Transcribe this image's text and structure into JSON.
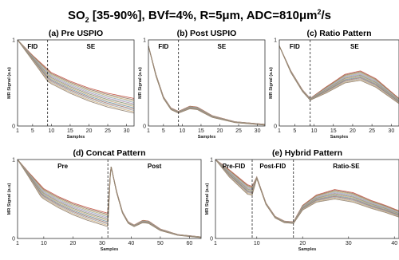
{
  "figure": {
    "title_main": "SO",
    "title_sub": "2",
    "title_rest": " [35-90%], BVf=4%, R=5μm, ADC=810μm",
    "title_sup": "2",
    "title_end": "/s"
  },
  "chart_data": [
    {
      "type": "line",
      "title": "(a) Pre USPIO",
      "xlabel": "Samples",
      "ylabel": "MR Signal (a.u)",
      "xlim": [
        1,
        32
      ],
      "ylim": [
        0,
        1
      ],
      "xticks": [
        1,
        5,
        10,
        15,
        20,
        25,
        30
      ],
      "yticks": [
        0,
        1
      ],
      "segments": [
        {
          "label": "FID",
          "x_from": 1,
          "x_to": 9
        },
        {
          "label": "SE",
          "x_from": 9,
          "x_to": 32
        }
      ],
      "dividers": [
        9
      ],
      "grid": false,
      "series_count": 12,
      "curves": {
        "top": [
          [
            1,
            1.0
          ],
          [
            5,
            0.82
          ],
          [
            9,
            0.66
          ],
          [
            10,
            0.62
          ],
          [
            15,
            0.52
          ],
          [
            20,
            0.44
          ],
          [
            25,
            0.38
          ],
          [
            32,
            0.32
          ]
        ],
        "bottom": [
          [
            1,
            1.0
          ],
          [
            5,
            0.76
          ],
          [
            9,
            0.52
          ],
          [
            10,
            0.49
          ],
          [
            15,
            0.38
          ],
          [
            20,
            0.29
          ],
          [
            25,
            0.22
          ],
          [
            32,
            0.15
          ]
        ]
      }
    },
    {
      "type": "line",
      "title": "(b) Post USPIO",
      "xlabel": "Samples",
      "ylabel": "MR Signal (a.u)",
      "xlim": [
        1,
        32
      ],
      "ylim": [
        0,
        1
      ],
      "xticks": [
        1,
        5,
        10,
        15,
        20,
        25,
        30
      ],
      "yticks": [
        0,
        1
      ],
      "segments": [
        {
          "label": "FID",
          "x_from": 1,
          "x_to": 9
        },
        {
          "label": "SE",
          "x_from": 9,
          "x_to": 32
        }
      ],
      "dividers": [
        9
      ],
      "grid": false,
      "series_count": 12,
      "curves": {
        "top": [
          [
            1,
            0.93
          ],
          [
            3,
            0.6
          ],
          [
            5,
            0.34
          ],
          [
            7,
            0.21
          ],
          [
            9,
            0.17
          ],
          [
            12,
            0.23
          ],
          [
            14,
            0.22
          ],
          [
            18,
            0.12
          ],
          [
            24,
            0.05
          ],
          [
            32,
            0.02
          ]
        ],
        "bottom": [
          [
            1,
            0.93
          ],
          [
            3,
            0.58
          ],
          [
            5,
            0.32
          ],
          [
            7,
            0.19
          ],
          [
            9,
            0.15
          ],
          [
            12,
            0.2
          ],
          [
            14,
            0.19
          ],
          [
            18,
            0.1
          ],
          [
            24,
            0.04
          ],
          [
            32,
            0.01
          ]
        ]
      }
    },
    {
      "type": "line",
      "title": "(c) Ratio Pattern",
      "xlabel": "Samples",
      "ylabel": "MR Signal (a.u)",
      "xlim": [
        1,
        32
      ],
      "ylim": [
        0,
        1
      ],
      "xticks": [
        1,
        5,
        10,
        15,
        20,
        25,
        30
      ],
      "yticks": [
        0,
        1
      ],
      "segments": [
        {
          "label": "FID",
          "x_from": 1,
          "x_to": 9
        },
        {
          "label": "SE",
          "x_from": 9,
          "x_to": 32
        }
      ],
      "dividers": [
        9
      ],
      "grid": false,
      "series_count": 12,
      "curves": {
        "top": [
          [
            1,
            0.93
          ],
          [
            4,
            0.64
          ],
          [
            7,
            0.42
          ],
          [
            9,
            0.32
          ],
          [
            13,
            0.45
          ],
          [
            18,
            0.6
          ],
          [
            22,
            0.64
          ],
          [
            26,
            0.55
          ],
          [
            32,
            0.32
          ]
        ],
        "bottom": [
          [
            1,
            0.93
          ],
          [
            4,
            0.62
          ],
          [
            7,
            0.4
          ],
          [
            9,
            0.3
          ],
          [
            13,
            0.38
          ],
          [
            18,
            0.5
          ],
          [
            22,
            0.53
          ],
          [
            26,
            0.45
          ],
          [
            32,
            0.26
          ]
        ]
      }
    },
    {
      "type": "line",
      "title": "(d) Concat Pattern",
      "xlabel": "Samples",
      "ylabel": "MR Signal (a.u)",
      "xlim": [
        1,
        64
      ],
      "ylim": [
        0,
        1
      ],
      "xticks": [
        1,
        10,
        20,
        30,
        40,
        50,
        60
      ],
      "yticks": [
        0,
        1
      ],
      "segments": [
        {
          "label": "Pre",
          "x_from": 1,
          "x_to": 32
        },
        {
          "label": "Post",
          "x_from": 32,
          "x_to": 64
        }
      ],
      "dividers": [
        32
      ],
      "grid": false,
      "series_count": 12,
      "curves": {
        "top": [
          [
            1,
            1.0
          ],
          [
            5,
            0.83
          ],
          [
            9,
            0.67
          ],
          [
            10,
            0.63
          ],
          [
            15,
            0.53
          ],
          [
            20,
            0.45
          ],
          [
            25,
            0.39
          ],
          [
            32,
            0.32
          ],
          [
            33,
            0.93
          ],
          [
            35,
            0.6
          ],
          [
            37,
            0.34
          ],
          [
            39,
            0.21
          ],
          [
            41,
            0.17
          ],
          [
            44,
            0.23
          ],
          [
            46,
            0.22
          ],
          [
            50,
            0.12
          ],
          [
            56,
            0.05
          ],
          [
            64,
            0.02
          ]
        ],
        "bottom": [
          [
            1,
            1.0
          ],
          [
            5,
            0.77
          ],
          [
            9,
            0.53
          ],
          [
            10,
            0.5
          ],
          [
            15,
            0.39
          ],
          [
            20,
            0.3
          ],
          [
            25,
            0.23
          ],
          [
            32,
            0.15
          ],
          [
            33,
            0.93
          ],
          [
            35,
            0.58
          ],
          [
            37,
            0.32
          ],
          [
            39,
            0.19
          ],
          [
            41,
            0.15
          ],
          [
            44,
            0.2
          ],
          [
            46,
            0.19
          ],
          [
            50,
            0.1
          ],
          [
            56,
            0.04
          ],
          [
            64,
            0.01
          ]
        ]
      }
    },
    {
      "type": "line",
      "title": "(e) Hybrid Pattern",
      "xlabel": "Samples",
      "ylabel": "MR Signal (a.u)",
      "xlim": [
        1,
        41
      ],
      "ylim": [
        0,
        1
      ],
      "xticks": [
        1,
        10,
        20,
        30,
        40
      ],
      "yticks": [
        0,
        1
      ],
      "segments": [
        {
          "label": "Pre-FID",
          "x_from": 1,
          "x_to": 9
        },
        {
          "label": "Post-FID",
          "x_from": 9,
          "x_to": 18
        },
        {
          "label": "Ratio-SE",
          "x_from": 18,
          "x_to": 41
        }
      ],
      "dividers": [
        9,
        18
      ],
      "grid": false,
      "series_count": 12,
      "curves": {
        "top": [
          [
            1,
            1.0
          ],
          [
            4,
            0.87
          ],
          [
            8,
            0.68
          ],
          [
            9,
            0.66
          ],
          [
            10,
            0.78
          ],
          [
            12,
            0.45
          ],
          [
            14,
            0.28
          ],
          [
            16,
            0.22
          ],
          [
            18,
            0.21
          ],
          [
            20,
            0.42
          ],
          [
            23,
            0.55
          ],
          [
            27,
            0.62
          ],
          [
            31,
            0.58
          ],
          [
            35,
            0.48
          ],
          [
            38,
            0.42
          ],
          [
            41,
            0.35
          ]
        ],
        "bottom": [
          [
            1,
            1.0
          ],
          [
            4,
            0.78
          ],
          [
            8,
            0.56
          ],
          [
            9,
            0.55
          ],
          [
            10,
            0.76
          ],
          [
            12,
            0.43
          ],
          [
            14,
            0.26
          ],
          [
            16,
            0.2
          ],
          [
            18,
            0.19
          ],
          [
            20,
            0.36
          ],
          [
            23,
            0.46
          ],
          [
            27,
            0.5
          ],
          [
            31,
            0.46
          ],
          [
            35,
            0.38
          ],
          [
            38,
            0.33
          ],
          [
            41,
            0.27
          ]
        ]
      }
    }
  ]
}
